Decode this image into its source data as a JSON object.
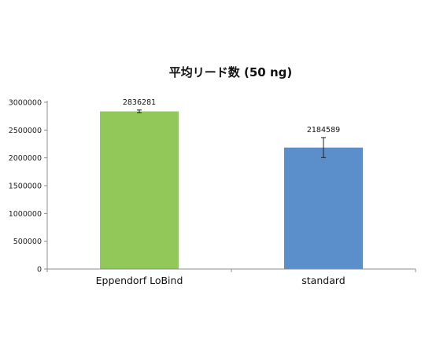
{
  "chart_data": {
    "type": "bar",
    "title": "平均リード数 (50 ng)",
    "xlabel": "",
    "ylabel": "",
    "categories": [
      "Eppendorf LoBind",
      "standard"
    ],
    "values": [
      2836281,
      2184589
    ],
    "error": [
      25000,
      180000
    ],
    "data_labels": [
      "2836281",
      "2184589"
    ],
    "colors": [
      "#92c85a",
      "#5b8fcb"
    ],
    "ylim": [
      0,
      3000000
    ],
    "yticks": [
      0,
      500000,
      1000000,
      1500000,
      2000000,
      2500000,
      3000000
    ],
    "ytick_labels": [
      "0",
      "500000",
      "1000000",
      "1500000",
      "2000000",
      "2500000",
      "3000000"
    ],
    "grid": false,
    "legend": "none"
  }
}
